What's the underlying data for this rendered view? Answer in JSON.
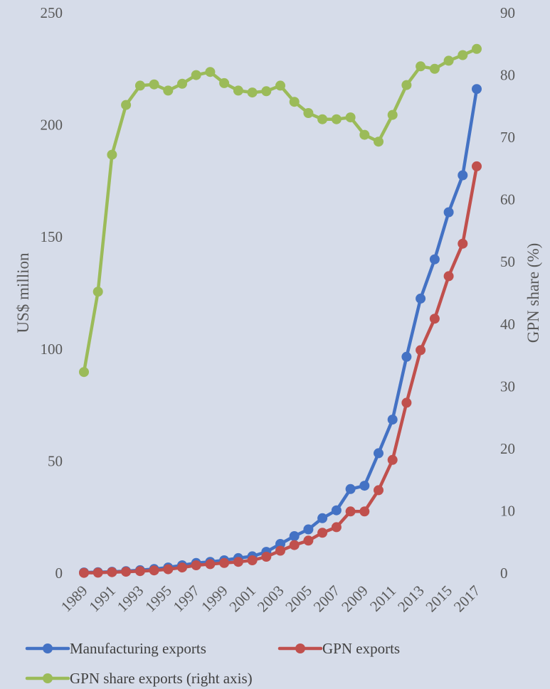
{
  "chart_data": {
    "type": "line",
    "title": "",
    "ylabel": "US$ million",
    "y2label": "GPN share (%)",
    "ylim": [
      0,
      250
    ],
    "y2lim": [
      0,
      90
    ],
    "yticks": [
      "0",
      "50",
      "100",
      "150",
      "200",
      "250"
    ],
    "y2ticks": [
      "0",
      "10",
      "20",
      "30",
      "40",
      "50",
      "60",
      "70",
      "80",
      "90"
    ],
    "x": [
      1989,
      1990,
      1991,
      1992,
      1993,
      1994,
      1995,
      1996,
      1997,
      1998,
      1999,
      2000,
      2001,
      2002,
      2003,
      2004,
      2005,
      2006,
      2007,
      2008,
      2009,
      2010,
      2011,
      2012,
      2013,
      2014,
      2015,
      2016,
      2017
    ],
    "xticks": [
      "1989",
      "1991",
      "1993",
      "1995",
      "1997",
      "1999",
      "2001",
      "2003",
      "2005",
      "2007",
      "2009",
      "2011",
      "2013",
      "2015",
      "2017"
    ],
    "grid": false,
    "legend": "bottom",
    "series": [
      {
        "name": "Manufacturing exports",
        "axis": "left",
        "color": "#4472c4",
        "values": [
          0.3,
          0.4,
          0.6,
          0.9,
          1.3,
          1.8,
          2.5,
          3.5,
          4.5,
          5.0,
          5.7,
          6.7,
          7.5,
          9.5,
          13.0,
          16.5,
          19.5,
          24.5,
          28.0,
          37.5,
          39.0,
          53.5,
          68.5,
          96.5,
          122.5,
          140.0,
          161.0,
          177.5,
          216.0
        ]
      },
      {
        "name": "GPN exports",
        "axis": "left",
        "color": "#c0504d",
        "values": [
          0.1,
          0.2,
          0.4,
          0.6,
          0.9,
          1.2,
          1.7,
          2.5,
          3.5,
          4.0,
          4.5,
          5.0,
          5.7,
          7.3,
          10.0,
          12.5,
          14.5,
          18.0,
          20.5,
          27.5,
          27.5,
          37.0,
          50.5,
          76.0,
          99.5,
          113.5,
          132.5,
          147.0,
          181.5
        ]
      },
      {
        "name": "GPN share exports (right axis)",
        "axis": "right",
        "color": "#9bbb59",
        "values": [
          32.3,
          45.2,
          67.2,
          75.2,
          78.3,
          78.5,
          77.5,
          78.6,
          80.0,
          80.5,
          78.7,
          77.5,
          77.2,
          77.4,
          78.3,
          75.7,
          73.9,
          72.9,
          72.9,
          73.2,
          70.4,
          69.3,
          73.6,
          78.4,
          81.4,
          81.0,
          82.3,
          83.2,
          84.2
        ]
      }
    ]
  }
}
